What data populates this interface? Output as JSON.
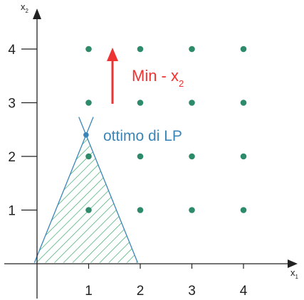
{
  "axes": {
    "x_label": "x",
    "x_label_sub": "1",
    "y_label": "x",
    "y_label_sub": "2",
    "x_ticks": [
      "1",
      "2",
      "3",
      "4"
    ],
    "y_ticks": [
      "1",
      "2",
      "3",
      "4"
    ],
    "axis_color": "#222222"
  },
  "objective": {
    "label_main": "Min - x",
    "label_sub": "2",
    "color": "#ee3333"
  },
  "optimum": {
    "label": "ottimo di LP",
    "color": "#3a86b8",
    "point": {
      "x": 0.95,
      "y": 2.4
    }
  },
  "feasible_region": {
    "vertices": [
      [
        -0.05,
        0.02
      ],
      [
        0.95,
        2.4
      ],
      [
        1.95,
        0.02
      ]
    ],
    "hatch_color": "#3aa86a",
    "edge_color": "#3a86b8"
  },
  "integer_points": {
    "color": "#2e8b6a",
    "points": [
      [
        1,
        4
      ],
      [
        2,
        4
      ],
      [
        3,
        4
      ],
      [
        4,
        4
      ],
      [
        1,
        3
      ],
      [
        2,
        3
      ],
      [
        3,
        3
      ],
      [
        4,
        3
      ],
      [
        1,
        2
      ],
      [
        2,
        2
      ],
      [
        3,
        2
      ],
      [
        4,
        2
      ],
      [
        1,
        1
      ],
      [
        2,
        1
      ],
      [
        3,
        1
      ],
      [
        4,
        1
      ]
    ]
  }
}
